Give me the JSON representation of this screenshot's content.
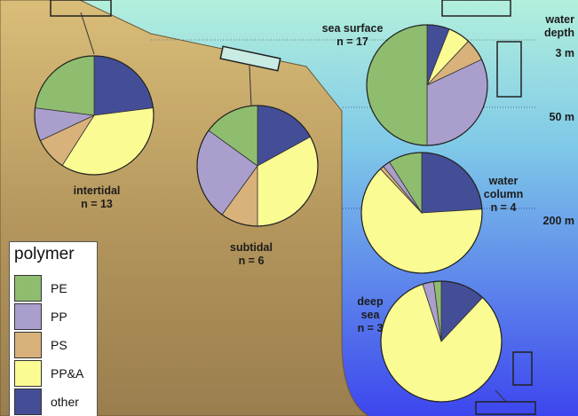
{
  "colors": {
    "PE": "#8fbd6f",
    "PP": "#aa9fcc",
    "PS": "#d8b27a",
    "PP&A": "#fbfb93",
    "other": "#444e97",
    "sand": "#c7a666",
    "water_top": "#b3f0dc",
    "water_bottom": "#3d46ee"
  },
  "legend": {
    "title": "polymer",
    "items": [
      {
        "key": "PE",
        "label": "PE"
      },
      {
        "key": "PP",
        "label": "PP"
      },
      {
        "key": "PS",
        "label": "PS"
      },
      {
        "key": "PP&A",
        "label": "PP&A"
      },
      {
        "key": "other",
        "label": "other"
      }
    ]
  },
  "depth_labels": {
    "header_line1": "water",
    "header_line2": "depth",
    "d1": "3 m",
    "d2": "50 m",
    "d3": "200 m"
  },
  "chart_data": [
    {
      "type": "pie",
      "id": "intertidal",
      "label": "intertidal",
      "n_label": "n = 13",
      "categories": [
        "other",
        "PP&A",
        "PS",
        "PP",
        "PE"
      ],
      "values": [
        23,
        36,
        9,
        9,
        23
      ]
    },
    {
      "type": "pie",
      "id": "subtidal",
      "label": "subtidal",
      "n_label": "n = 6",
      "categories": [
        "other",
        "PP&A",
        "PS",
        "PP",
        "PE"
      ],
      "values": [
        17,
        33,
        10,
        25,
        15
      ]
    },
    {
      "type": "pie",
      "id": "sea_surface",
      "label": "sea surface",
      "n_label": "n = 17",
      "categories": [
        "other",
        "PP&A",
        "PS",
        "PP",
        "PE"
      ],
      "values": [
        6,
        6,
        6,
        32,
        50
      ]
    },
    {
      "type": "pie",
      "id": "water_column",
      "label_line1": "water",
      "label_line2": "column",
      "n_label": "n = 4",
      "categories": [
        "other",
        "PP&A",
        "PS",
        "PP",
        "PE"
      ],
      "values": [
        24,
        64,
        1,
        2,
        9
      ]
    },
    {
      "type": "pie",
      "id": "deep_sea",
      "label_line1": "deep",
      "label_line2": "sea",
      "n_label": "n = 3",
      "categories": [
        "other",
        "PP&A",
        "PS",
        "PP",
        "PE"
      ],
      "values": [
        12,
        83,
        0,
        3,
        2
      ]
    }
  ]
}
